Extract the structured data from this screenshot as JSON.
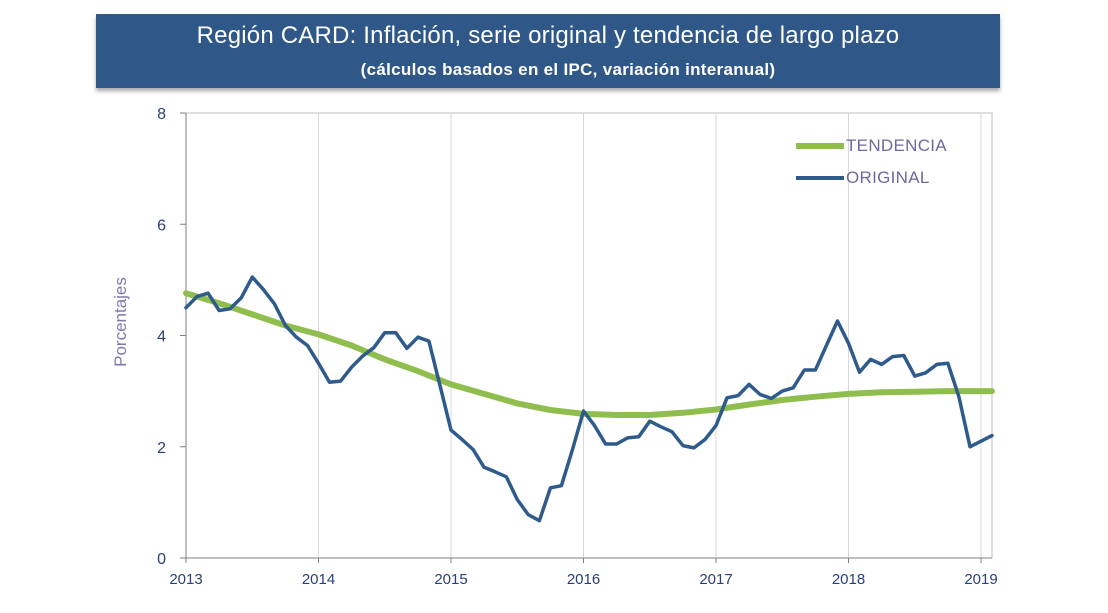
{
  "header": {
    "title": "Región CARD: Inflación, serie original y tendencia de largo plazo",
    "subtitle": "(cálculos basados en el IPC, variación interanual)"
  },
  "chart_data": {
    "type": "line",
    "title": "Región CARD: Inflación, serie original y tendencia de largo plazo",
    "subtitle": "(cálculos basados en el IPC, variación interanual)",
    "xlabel": "",
    "ylabel": "Porcentajes",
    "xlim": [
      2013,
      2019.083
    ],
    "ylim": [
      0,
      8
    ],
    "x_ticks": [
      "2013",
      "2014",
      "2015",
      "2016",
      "2017",
      "2018",
      "2019"
    ],
    "y_ticks": [
      "0",
      "2",
      "4",
      "6",
      "8"
    ],
    "grid": "vertical",
    "legend_position": "top-right",
    "series": [
      {
        "name": "TENDENCIA",
        "color": "#8fbe4f",
        "points": [
          [
            2013.0,
            4.76
          ],
          [
            2013.25,
            4.58
          ],
          [
            2013.5,
            4.38
          ],
          [
            2013.75,
            4.18
          ],
          [
            2014.0,
            4.02
          ],
          [
            2014.25,
            3.82
          ],
          [
            2014.5,
            3.57
          ],
          [
            2014.75,
            3.36
          ],
          [
            2015.0,
            3.12
          ],
          [
            2015.25,
            2.95
          ],
          [
            2015.5,
            2.78
          ],
          [
            2015.75,
            2.66
          ],
          [
            2016.0,
            2.59
          ],
          [
            2016.25,
            2.57
          ],
          [
            2016.5,
            2.57
          ],
          [
            2016.75,
            2.61
          ],
          [
            2017.0,
            2.67
          ],
          [
            2017.25,
            2.76
          ],
          [
            2017.5,
            2.84
          ],
          [
            2017.75,
            2.9
          ],
          [
            2018.0,
            2.95
          ],
          [
            2018.25,
            2.98
          ],
          [
            2018.5,
            2.99
          ],
          [
            2018.75,
            3.0
          ],
          [
            2019.0,
            3.0
          ],
          [
            2019.083,
            3.0
          ]
        ]
      },
      {
        "name": "ORIGINAL",
        "color": "#2f5a8c",
        "points": [
          [
            2013.0,
            4.5
          ],
          [
            2013.083,
            4.7
          ],
          [
            2013.167,
            4.76
          ],
          [
            2013.25,
            4.45
          ],
          [
            2013.333,
            4.48
          ],
          [
            2013.417,
            4.68
          ],
          [
            2013.5,
            5.05
          ],
          [
            2013.583,
            4.83
          ],
          [
            2013.667,
            4.57
          ],
          [
            2013.75,
            4.18
          ],
          [
            2013.833,
            3.97
          ],
          [
            2013.917,
            3.82
          ],
          [
            2014.0,
            3.5
          ],
          [
            2014.083,
            3.16
          ],
          [
            2014.167,
            3.18
          ],
          [
            2014.25,
            3.43
          ],
          [
            2014.333,
            3.63
          ],
          [
            2014.417,
            3.78
          ],
          [
            2014.5,
            4.05
          ],
          [
            2014.583,
            4.05
          ],
          [
            2014.667,
            3.77
          ],
          [
            2014.75,
            3.97
          ],
          [
            2014.833,
            3.9
          ],
          [
            2014.917,
            3.1
          ],
          [
            2015.0,
            2.3
          ],
          [
            2015.083,
            2.13
          ],
          [
            2015.167,
            1.95
          ],
          [
            2015.25,
            1.63
          ],
          [
            2015.333,
            1.55
          ],
          [
            2015.417,
            1.46
          ],
          [
            2015.5,
            1.05
          ],
          [
            2015.583,
            0.78
          ],
          [
            2015.667,
            0.67
          ],
          [
            2015.75,
            1.26
          ],
          [
            2015.833,
            1.3
          ],
          [
            2015.917,
            1.95
          ],
          [
            2016.0,
            2.64
          ],
          [
            2016.083,
            2.38
          ],
          [
            2016.167,
            2.05
          ],
          [
            2016.25,
            2.05
          ],
          [
            2016.333,
            2.16
          ],
          [
            2016.417,
            2.18
          ],
          [
            2016.5,
            2.46
          ],
          [
            2016.583,
            2.36
          ],
          [
            2016.667,
            2.27
          ],
          [
            2016.75,
            2.02
          ],
          [
            2016.833,
            1.98
          ],
          [
            2016.917,
            2.13
          ],
          [
            2017.0,
            2.38
          ],
          [
            2017.083,
            2.88
          ],
          [
            2017.167,
            2.92
          ],
          [
            2017.25,
            3.12
          ],
          [
            2017.333,
            2.94
          ],
          [
            2017.417,
            2.87
          ],
          [
            2017.5,
            3.0
          ],
          [
            2017.583,
            3.06
          ],
          [
            2017.667,
            3.38
          ],
          [
            2017.75,
            3.38
          ],
          [
            2017.833,
            3.82
          ],
          [
            2017.917,
            4.26
          ],
          [
            2018.0,
            3.86
          ],
          [
            2018.083,
            3.34
          ],
          [
            2018.167,
            3.57
          ],
          [
            2018.25,
            3.48
          ],
          [
            2018.333,
            3.62
          ],
          [
            2018.417,
            3.64
          ],
          [
            2018.5,
            3.27
          ],
          [
            2018.583,
            3.33
          ],
          [
            2018.667,
            3.48
          ],
          [
            2018.75,
            3.5
          ],
          [
            2018.833,
            2.9
          ],
          [
            2018.917,
            2.0
          ],
          [
            2019.0,
            2.1
          ],
          [
            2019.083,
            2.2
          ]
        ]
      }
    ]
  }
}
